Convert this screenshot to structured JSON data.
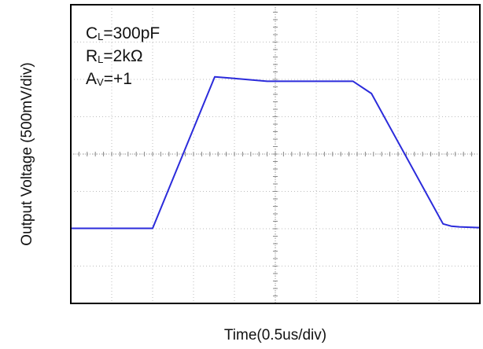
{
  "chart_data": {
    "type": "line",
    "title": "",
    "xlabel": "Time(0.5us/div)",
    "ylabel": "Output Voltage (500mV/div)",
    "grid": true,
    "x_divisions": 10,
    "y_divisions": 8,
    "xlim": [
      0,
      10
    ],
    "ylim": [
      -4,
      4
    ],
    "annotations": [
      {
        "main": "C",
        "sub": "L",
        "rest": "=300pF"
      },
      {
        "main": "R",
        "sub": "L",
        "rest": "=2kΩ"
      },
      {
        "main": "A",
        "sub": "V",
        "rest": "=+1"
      }
    ],
    "series": [
      {
        "color": "#2b2bdb",
        "x": [
          0,
          2.0,
          3.52,
          3.85,
          4.8,
          6.9,
          7.35,
          9.1,
          9.3,
          9.5,
          10
        ],
        "y": [
          -1.99,
          -1.99,
          2.07,
          2.04,
          1.95,
          1.95,
          1.62,
          -1.87,
          -1.93,
          -1.95,
          -1.97
        ]
      }
    ],
    "colors": {
      "grid": "#bdbdbd",
      "axis": "#000000",
      "background": "#ffffff"
    }
  }
}
